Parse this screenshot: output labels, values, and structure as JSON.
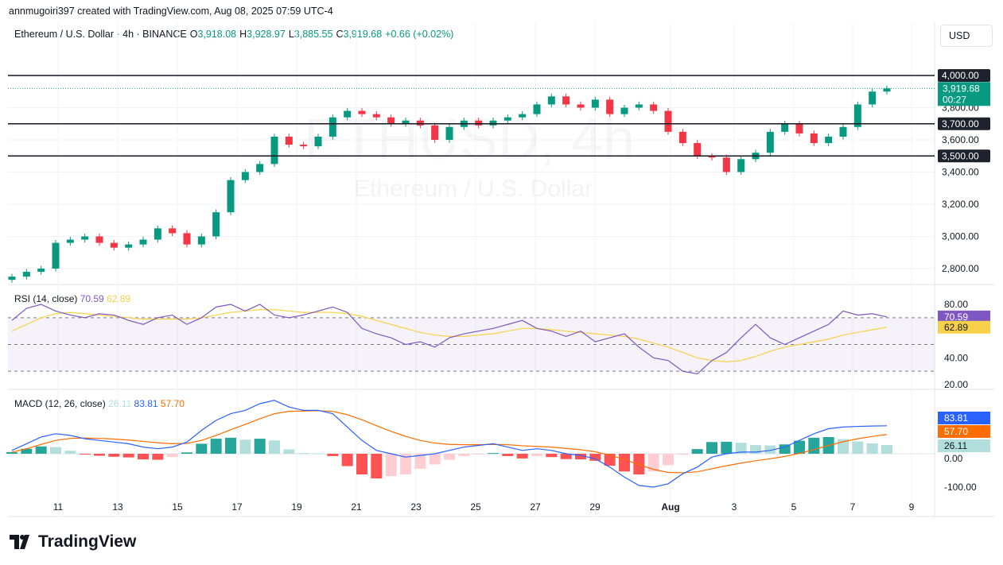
{
  "credit": "annmugoiri397 created with TradingView.com, Aug 08, 2025 07:59 UTC-4",
  "legend": {
    "symbol": "Ethereum / U.S. Dollar · 4h · BINANCE",
    "o_label": "O",
    "o": "3,918.08",
    "h_label": "H",
    "h": "3,928.97",
    "l_label": "L",
    "l": "3,885.55",
    "c_label": "C",
    "c": "3,919.68",
    "change": "+0.66 (+0.02%)"
  },
  "currency": "USD",
  "watermark": {
    "ticker": "ETHUSD, 4h",
    "name": "Ethereum / U.S. Dollar"
  },
  "brand": "TradingView",
  "colors": {
    "up": "#089981",
    "down": "#f23645",
    "rsi": "#7e57c2",
    "rsi_ma": "#f7d14a",
    "macd": "#2962ff",
    "signal": "#ff6d00",
    "level_line": "#131722"
  },
  "chart_data": [
    {
      "type": "candlestick",
      "name": "ETHUSD",
      "price_axis": {
        "ticks": [
          "2,800.00",
          "3,000.00",
          "3,200.00",
          "3,400.00",
          "3,600.00",
          "3,800.00"
        ],
        "range": [
          2700,
          4130
        ]
      },
      "x_ticks": [
        "11",
        "13",
        "15",
        "17",
        "19",
        "21",
        "23",
        "25",
        "27",
        "29",
        "Aug",
        "3",
        "5",
        "7",
        "9"
      ],
      "x_range": [
        "2025-07-09T12:00",
        "2025-08-09T12:00"
      ],
      "interval": "12h (approximated from 4h chart)",
      "start": "2025-07-09T12:00",
      "close": [
        2750,
        2780,
        2800,
        2960,
        2980,
        3000,
        2960,
        2930,
        2950,
        2980,
        3050,
        3020,
        2950,
        3000,
        3150,
        3350,
        3400,
        3450,
        3620,
        3570,
        3560,
        3620,
        3740,
        3780,
        3760,
        3740,
        3700,
        3720,
        3690,
        3600,
        3680,
        3720,
        3690,
        3720,
        3740,
        3760,
        3820,
        3870,
        3820,
        3800,
        3850,
        3760,
        3800,
        3820,
        3780,
        3650,
        3580,
        3500,
        3490,
        3400,
        3480,
        3520,
        3650,
        3700,
        3640,
        3580,
        3620,
        3680,
        3820,
        3900,
        3919.68
      ],
      "levels": [
        {
          "value": 4000,
          "label": "4,000.00"
        },
        {
          "value": 3700,
          "label": "3,700.00"
        },
        {
          "value": 3500,
          "label": "3,500.00"
        }
      ],
      "last": {
        "value": 3919.68,
        "label": "3,919.68",
        "countdown": "00:27"
      }
    },
    {
      "type": "line",
      "name": "RSI (14, close)",
      "values_label": [
        "70.59",
        "62.89"
      ],
      "range": [
        10,
        90
      ],
      "ticks": [
        "80.00",
        "40.00",
        "20.00"
      ],
      "bands": [
        70,
        50,
        30
      ],
      "rsi": [
        68,
        77,
        80,
        75,
        72,
        70,
        73,
        72,
        68,
        65,
        70,
        72,
        65,
        70,
        78,
        80,
        75,
        80,
        72,
        70,
        72,
        75,
        78,
        74,
        62,
        58,
        55,
        50,
        52,
        48,
        55,
        58,
        60,
        62,
        65,
        68,
        62,
        60,
        56,
        60,
        52,
        55,
        58,
        48,
        40,
        38,
        30,
        28,
        38,
        44,
        55,
        65,
        55,
        50,
        55,
        60,
        65,
        75,
        72,
        73,
        70.59
      ],
      "rsi_ma": [
        60,
        65,
        70,
        73,
        74,
        73,
        72,
        71,
        70,
        69,
        69,
        69,
        69,
        70,
        72,
        74,
        75,
        76,
        76,
        75,
        74,
        74,
        74,
        73,
        71,
        68,
        65,
        62,
        59,
        57,
        56,
        56,
        57,
        58,
        60,
        62,
        62,
        61,
        60,
        59,
        58,
        57,
        56,
        54,
        51,
        48,
        44,
        40,
        38,
        37,
        38,
        41,
        45,
        48,
        50,
        52,
        54,
        57,
        59,
        61,
        62.89
      ],
      "labels": {
        "rsi": "70.59",
        "ma": "62.89"
      }
    },
    {
      "type": "bar+line",
      "name": "MACD (12, 26, close)",
      "values_label": [
        "26.11",
        "83.81",
        "57.70"
      ],
      "range": [
        -120,
        160
      ],
      "ticks": [
        "0.00",
        "-100.00"
      ],
      "macd": [
        10,
        30,
        50,
        60,
        55,
        45,
        40,
        35,
        30,
        20,
        15,
        20,
        35,
        70,
        100,
        120,
        130,
        150,
        160,
        140,
        130,
        130,
        120,
        80,
        40,
        10,
        0,
        -10,
        -5,
        0,
        10,
        20,
        25,
        30,
        20,
        10,
        15,
        10,
        0,
        -5,
        -15,
        -40,
        -70,
        -95,
        -100,
        -90,
        -60,
        -40,
        -10,
        0,
        5,
        5,
        10,
        20,
        40,
        60,
        75,
        80,
        82,
        83,
        83.81
      ],
      "signal": [
        5,
        15,
        28,
        40,
        46,
        47,
        46,
        44,
        41,
        37,
        33,
        30,
        31,
        40,
        55,
        72,
        88,
        105,
        120,
        127,
        128,
        129,
        127,
        117,
        102,
        84,
        67,
        52,
        40,
        32,
        28,
        27,
        27,
        28,
        27,
        24,
        22,
        20,
        16,
        12,
        6,
        -4,
        -17,
        -33,
        -47,
        -56,
        -57,
        -54,
        -45,
        -36,
        -28,
        -21,
        -15,
        -8,
        1,
        12,
        25,
        36,
        45,
        52,
        57.7
      ],
      "labels": {
        "hist": "26.11",
        "macd": "83.81",
        "signal": "57.70"
      }
    }
  ]
}
